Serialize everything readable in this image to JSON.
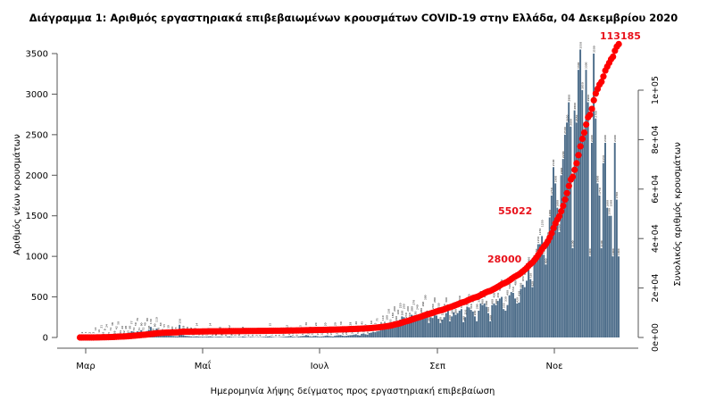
{
  "chart_data": {
    "type": "bar",
    "title": "Διάγραμμα 1: Αριθμός εργαστηριακά επιβεβαιωμένων κρουσμάτων COVID-19 στην Ελλάδα, 04 Δεκεμβρίου 2020",
    "xlabel": "Ημερομηνία λήψης δείγματος προς εργαστηριακή επιβεβαίωση",
    "ylabel": "Αριθμός νέων κρουσμάτων",
    "ylabel_right": "Συνολικός αριθμός κρουσμάτων",
    "x_ticks": [
      "Μαρ",
      "Μαΐ",
      "Ιουλ",
      "Σεπ",
      "Νοε"
    ],
    "y_ticks": [
      0,
      500,
      1000,
      1500,
      2000,
      2500,
      3000,
      3500
    ],
    "y_right_ticks": [
      "0e+00",
      "2e+04",
      "4e+04",
      "6e+04",
      "8e+04",
      "1e+05"
    ],
    "ylim": [
      0,
      3500
    ],
    "ylim_right": [
      0,
      100000
    ],
    "start_date": "2020-02-26",
    "end_date": "2020-12-03",
    "series": [
      {
        "type": "bar",
        "color": "#4d6d8a",
        "values": [
          1,
          2,
          3,
          1,
          0,
          2,
          0,
          3,
          14,
          8,
          16,
          21,
          16,
          8,
          24,
          15,
          31,
          38,
          29,
          42,
          50,
          34,
          26,
          32,
          48,
          35,
          60,
          77,
          72,
          59,
          76,
          71,
          90,
          72,
          40,
          80,
          95,
          130,
          60,
          90,
          110,
          70,
          60,
          55,
          55,
          40,
          30,
          25,
          20,
          18,
          15,
          14,
          156,
          35,
          28,
          20,
          18,
          15,
          12,
          10,
          12,
          14,
          11,
          9,
          10,
          8,
          10,
          12,
          14,
          10,
          6,
          8,
          9,
          10,
          8,
          5,
          4,
          10,
          12,
          8,
          6,
          5,
          4,
          8,
          6,
          12,
          10,
          5,
          4,
          8,
          6,
          4,
          3,
          5,
          4,
          6,
          8,
          10,
          12,
          15,
          10,
          6,
          4,
          3,
          5,
          6,
          8,
          10,
          12,
          15,
          20,
          10,
          8,
          6,
          12,
          15,
          18,
          20,
          30,
          25,
          15,
          12,
          18,
          20,
          15,
          10,
          12,
          15,
          20,
          25,
          18,
          15,
          12,
          20,
          25,
          28,
          30,
          22,
          18,
          20,
          25,
          28,
          30,
          35,
          40,
          30,
          25,
          45,
          50,
          40,
          35,
          55,
          60,
          70,
          65,
          75,
          80,
          90,
          110,
          120,
          100,
          130,
          150,
          180,
          200,
          190,
          160,
          220,
          260,
          250,
          230,
          200,
          230,
          280,
          270,
          250,
          240,
          210,
          280,
          290,
          300,
          260,
          180,
          250,
          240,
          280,
          270,
          230,
          180,
          220,
          250,
          300,
          330,
          200,
          260,
          310,
          280,
          300,
          330,
          350,
          190,
          250,
          380,
          370,
          340,
          320,
          260,
          200,
          330,
          420,
          400,
          420,
          380,
          300,
          200,
          400,
          420,
          400,
          450,
          480,
          500,
          350,
          330,
          400,
          520,
          560,
          550,
          480,
          420,
          430,
          600,
          650,
          620,
          700,
          900,
          720,
          620,
          940,
          960,
          1150,
          1150,
          1250,
          1020,
          900,
          1200,
          1480,
          1750,
          2100,
          1900,
          1600,
          1300,
          2000,
          2200,
          2500,
          2650,
          2900,
          2600,
          1100,
          2800,
          2650,
          3300,
          3550,
          3050,
          2500,
          3300,
          2900,
          1000,
          2400,
          3500,
          2700,
          1900,
          1750,
          1100,
          2150,
          2400,
          1600,
          1500,
          1500,
          1000,
          2400,
          1700,
          1000
        ]
      },
      {
        "type": "scatter",
        "color": "#ff0000",
        "cumulative": true
      }
    ],
    "annotations": [
      "28000",
      "55022",
      "113185"
    ],
    "grid": false,
    "legend": "none"
  }
}
